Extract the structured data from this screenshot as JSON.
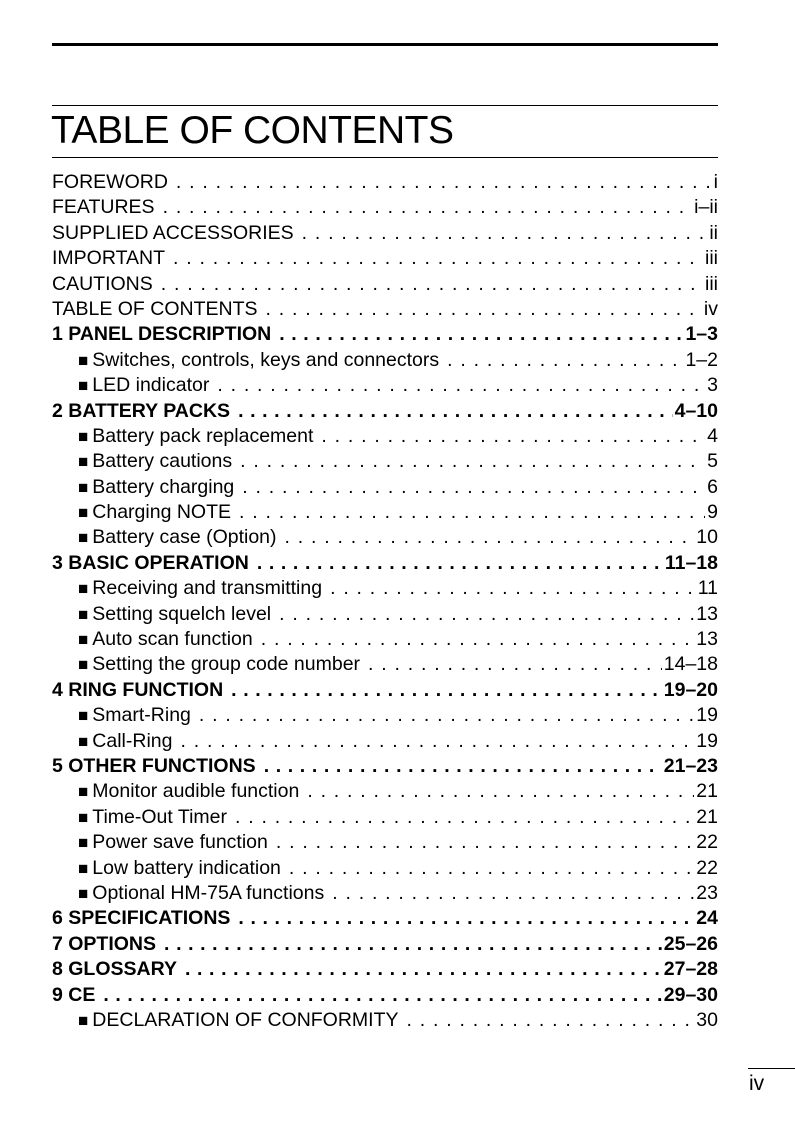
{
  "title": "TABLE OF CONTENTS",
  "page_number": "iv",
  "entries": [
    {
      "label": "FOREWORD",
      "page": "i",
      "level": 0,
      "bold": false
    },
    {
      "label": "FEATURES",
      "page": "i–ii",
      "level": 0,
      "bold": false
    },
    {
      "label": "SUPPLIED ACCESSORIES",
      "page": "ii",
      "level": 0,
      "bold": false
    },
    {
      "label": "IMPORTANT",
      "page": "iii",
      "level": 0,
      "bold": false
    },
    {
      "label": "CAUTIONS",
      "page": "iii",
      "level": 0,
      "bold": false
    },
    {
      "label": "TABLE OF CONTENTS",
      "page": "iv",
      "level": 0,
      "bold": false
    },
    {
      "label": "1 PANEL DESCRIPTION",
      "page": "1–3",
      "level": 0,
      "bold": true
    },
    {
      "label": "Switches, controls, keys and connectors",
      "page": "1–2",
      "level": 1,
      "bold": false
    },
    {
      "label": "LED indicator",
      "page": "3",
      "level": 1,
      "bold": false
    },
    {
      "label": "2 BATTERY PACKS",
      "page": "4–10",
      "level": 0,
      "bold": true
    },
    {
      "label": "Battery pack replacement",
      "page": "4",
      "level": 1,
      "bold": false
    },
    {
      "label": "Battery cautions",
      "page": "5",
      "level": 1,
      "bold": false
    },
    {
      "label": "Battery charging",
      "page": "6",
      "level": 1,
      "bold": false
    },
    {
      "label": "Charging NOTE",
      "page": "9",
      "level": 1,
      "bold": false
    },
    {
      "label": "Battery case (Option)",
      "page": "10",
      "level": 1,
      "bold": false
    },
    {
      "label": "3 BASIC OPERATION",
      "page": "11–18",
      "level": 0,
      "bold": true
    },
    {
      "label": "Receiving and transmitting",
      "page": "11",
      "level": 1,
      "bold": false
    },
    {
      "label": "Setting squelch level",
      "page": "13",
      "level": 1,
      "bold": false
    },
    {
      "label": "Auto scan function",
      "page": "13",
      "level": 1,
      "bold": false
    },
    {
      "label": "Setting the group code number",
      "page": "14–18",
      "level": 1,
      "bold": false
    },
    {
      "label": "4 RING FUNCTION",
      "page": "19–20",
      "level": 0,
      "bold": true
    },
    {
      "label": "Smart-Ring",
      "page": "19",
      "level": 1,
      "bold": false
    },
    {
      "label": "Call-Ring",
      "page": "19",
      "level": 1,
      "bold": false
    },
    {
      "label": "5 OTHER FUNCTIONS",
      "page": "21–23",
      "level": 0,
      "bold": true
    },
    {
      "label": "Monitor audible function",
      "page": "21",
      "level": 1,
      "bold": false
    },
    {
      "label": "Time-Out Timer",
      "page": "21",
      "level": 1,
      "bold": false
    },
    {
      "label": "Power save function",
      "page": "22",
      "level": 1,
      "bold": false
    },
    {
      "label": "Low battery indication",
      "page": "22",
      "level": 1,
      "bold": false
    },
    {
      "label": "Optional HM-75A functions",
      "page": "23",
      "level": 1,
      "bold": false
    },
    {
      "label": "6 SPECIFICATIONS",
      "page": "24",
      "level": 0,
      "bold": true
    },
    {
      "label": "7 OPTIONS",
      "page": "25–26",
      "level": 0,
      "bold": true
    },
    {
      "label": "8 GLOSSARY",
      "page": "27–28",
      "level": 0,
      "bold": true
    },
    {
      "label": "9 CE",
      "page": "29–30",
      "level": 0,
      "bold": true
    },
    {
      "label": "DECLARATION OF CONFORMITY",
      "page": "30",
      "level": 1,
      "bold": false
    }
  ]
}
